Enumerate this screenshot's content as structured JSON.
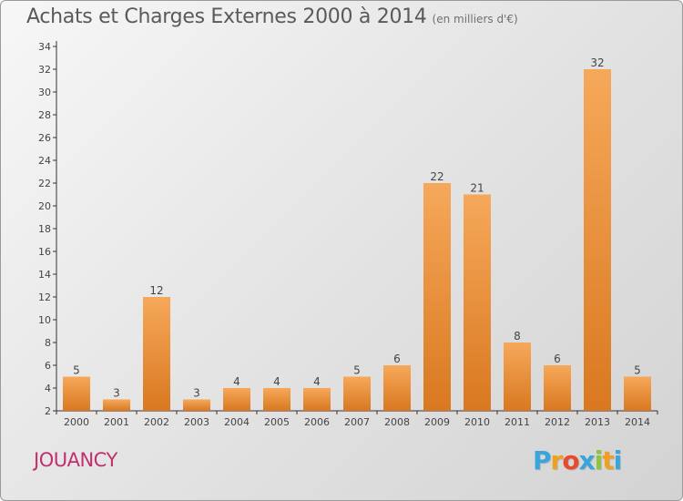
{
  "header": {
    "title": "Achats et Charges Externes 2000 à 2014",
    "subtitle": "(en milliers d'€)"
  },
  "footer": {
    "commune": "JOUANCY",
    "logo_letters": [
      "P",
      "r",
      "o",
      "x",
      "i",
      "t",
      "i"
    ],
    "logo_colors": [
      "#3aa5dc",
      "#f0a020",
      "#e64b2e",
      "#3aa5dc",
      "#8cc63f",
      "#f0a020",
      "#3aa5dc"
    ]
  },
  "colors": {
    "bar_top": "#f6a85a",
    "bar_bottom": "#d97820",
    "axis": "#333333",
    "label": "#444444"
  },
  "chart_data": {
    "type": "bar",
    "categories": [
      "2000",
      "2001",
      "2002",
      "2003",
      "2004",
      "2005",
      "2006",
      "2007",
      "2008",
      "2009",
      "2010",
      "2011",
      "2012",
      "2013",
      "2014"
    ],
    "values": [
      5,
      3,
      12,
      3,
      4,
      4,
      4,
      5,
      6,
      22,
      21,
      8,
      6,
      32,
      5
    ],
    "ylim": [
      2,
      34
    ],
    "yticks": [
      2,
      4,
      6,
      8,
      10,
      12,
      14,
      16,
      18,
      20,
      22,
      24,
      26,
      28,
      30,
      32,
      34
    ],
    "grid": false,
    "legend": "none"
  }
}
